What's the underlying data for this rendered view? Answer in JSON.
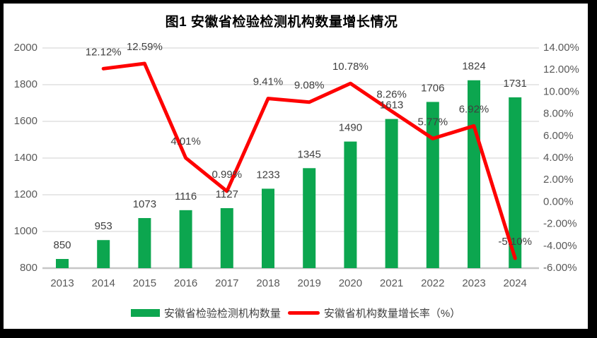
{
  "title": "图1 安徽省检验检测机构数量增长情况",
  "colors": {
    "bar": "#0ca64f",
    "line": "#fe0000",
    "grid": "#d9d9d9",
    "baseline": "#c6c6c6",
    "axis_text": "#595959",
    "label_text": "#404040",
    "frame": "#000000",
    "background": "#ffffff"
  },
  "chart_data": {
    "type": "combo (bar + line)",
    "title": "图1 安徽省检验检测机构数量增长情况",
    "categories": [
      "2013",
      "2014",
      "2015",
      "2016",
      "2017",
      "2018",
      "2019",
      "2020",
      "2021",
      "2022",
      "2023",
      "2024"
    ],
    "series": [
      {
        "name": "安徽省检验检测机构数量",
        "type": "bar",
        "axis": "left",
        "values": [
          850,
          953,
          1073,
          1116,
          1127,
          1233,
          1345,
          1490,
          1613,
          1706,
          1824,
          1731
        ],
        "labels": [
          "850",
          "953",
          "1073",
          "1116",
          "1127",
          "1233",
          "1345",
          "1490",
          "1613",
          "1706",
          "1824",
          "1731"
        ]
      },
      {
        "name": "安徽省机构数量增长率（%）",
        "type": "line",
        "axis": "right",
        "values": [
          null,
          12.12,
          12.59,
          4.01,
          0.99,
          9.41,
          9.08,
          10.78,
          8.26,
          5.77,
          6.92,
          -5.1
        ],
        "labels": [
          null,
          "12.12%",
          "12.59%",
          "4.01%",
          "0.99%",
          "9.41%",
          "9.08%",
          "10.78%",
          "8.26%",
          "5.77%",
          "6.92%",
          "-5.10%"
        ]
      }
    ],
    "left_axis": {
      "min": 800,
      "max": 2000,
      "step": 200,
      "ticks": [
        "2000",
        "1800",
        "1600",
        "1400",
        "1200",
        "1000",
        "800"
      ]
    },
    "right_axis": {
      "min": -6,
      "max": 14,
      "step": 2,
      "ticks": [
        "14.00%",
        "12.00%",
        "10.00%",
        "8.00%",
        "6.00%",
        "4.00%",
        "2.00%",
        "0.00%",
        "-2.00%",
        "-4.00%",
        "-6.00%"
      ]
    },
    "grid": true,
    "legend_position": "bottom"
  },
  "legend": {
    "items": [
      {
        "label": "安徽省检验检测机构数量",
        "swatch": "bar"
      },
      {
        "label": "安徽省机构数量增长率（%）",
        "swatch": "line"
      }
    ]
  }
}
